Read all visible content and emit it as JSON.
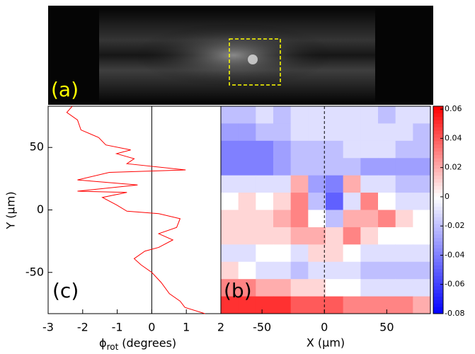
{
  "chart_data": [
    {
      "type": "image",
      "label": "(a)"
    },
    {
      "type": "line",
      "label": "(c)",
      "x_label": {
        "symbol": "ϕ",
        "subscript": "rot",
        "unit": "(degrees)"
      },
      "y_label": "Y (μm)",
      "xlim": [
        -3,
        2
      ],
      "xticks": [
        -3,
        -2,
        -1,
        0,
        1,
        2
      ],
      "ylim": [
        -83,
        83
      ],
      "yticks": [
        50,
        0,
        -50
      ],
      "series": [
        {
          "color": "#ff0000",
          "x": [
            -2.3,
            -2.46,
            -2.15,
            -2.05,
            -1.54,
            -1.33,
            -0.61,
            -1.02,
            -0.51,
            -0.72,
            0.98,
            -1.23,
            -2.15,
            -0.41,
            -2.15,
            -0.72,
            -1.43,
            -1.02,
            -0.72,
            0.2,
            0.82,
            0.72,
            0.2,
            0.61,
            0.2,
            -0.2,
            -0.51,
            -0.31,
            0,
            0.27,
            0.51,
            0.82,
            0.96,
            1.54
          ],
          "y": [
            83,
            78,
            72,
            64,
            58,
            52,
            48,
            45,
            41,
            37,
            32,
            30,
            24,
            20,
            15,
            14,
            10,
            4,
            -1,
            -3,
            -7,
            -14,
            -19,
            -24,
            -30,
            -33,
            -39,
            -44,
            -50,
            -58,
            -67,
            -73,
            -78,
            -83
          ]
        }
      ]
    },
    {
      "type": "heatmap",
      "label": "(b)",
      "x_label": "X (μm)",
      "xlim": [
        -83,
        85
      ],
      "xticks": [
        -50,
        0,
        50
      ],
      "ylim": [
        -83,
        83
      ],
      "clim": [
        -0.08,
        0.062
      ],
      "cticks": [
        0.06,
        0.04,
        0.02,
        0,
        -0.02,
        -0.04,
        -0.06,
        -0.08
      ],
      "z": [
        [
          -0.02,
          -0.02,
          -0.01,
          -0.02,
          -0.01,
          -0.01,
          -0.01,
          -0.01,
          -0.01,
          -0.02,
          -0.01,
          -0.01
        ],
        [
          -0.03,
          -0.03,
          -0.02,
          -0.02,
          -0.01,
          -0.01,
          -0.01,
          -0.01,
          -0.01,
          -0.01,
          -0.01,
          -0.02
        ],
        [
          -0.04,
          -0.04,
          -0.04,
          -0.03,
          -0.02,
          -0.02,
          -0.02,
          -0.01,
          -0.01,
          -0.01,
          -0.02,
          -0.02
        ],
        [
          -0.04,
          -0.04,
          -0.04,
          -0.03,
          -0.02,
          -0.02,
          -0.02,
          -0.02,
          -0.03,
          -0.03,
          -0.03,
          -0.03
        ],
        [
          -0.01,
          -0.01,
          -0.01,
          -0.01,
          0.02,
          -0.03,
          -0.04,
          0.02,
          -0.01,
          -0.01,
          -0.02,
          -0.02
        ],
        [
          0,
          0.01,
          0,
          0.01,
          0.03,
          -0.02,
          -0.05,
          -0.01,
          0.03,
          0,
          -0.01,
          -0.01
        ],
        [
          0.01,
          0.01,
          0.01,
          0.02,
          0.03,
          0,
          -0.02,
          0.02,
          0.02,
          0.03,
          0.01,
          0
        ],
        [
          0.01,
          0.01,
          0.01,
          0.01,
          0.02,
          0.02,
          0.01,
          0.03,
          0.01,
          0,
          0,
          0
        ],
        [
          -0.01,
          -0.01,
          0,
          0,
          -0.01,
          0.01,
          0.01,
          0,
          -0.01,
          -0.01,
          -0.01,
          -0.01
        ],
        [
          0.01,
          0,
          -0.01,
          -0.01,
          -0.02,
          -0.01,
          -0.01,
          -0.01,
          -0.02,
          -0.02,
          -0.02,
          -0.02
        ],
        [
          0.03,
          0.03,
          0.02,
          0.02,
          0.01,
          0.01,
          0,
          0,
          -0.01,
          -0.01,
          -0.01,
          -0.01
        ],
        [
          0.05,
          0.05,
          0.05,
          0.05,
          0.04,
          0.04,
          0.04,
          0.03,
          0.03,
          0.03,
          0.03,
          0.02
        ]
      ]
    }
  ]
}
